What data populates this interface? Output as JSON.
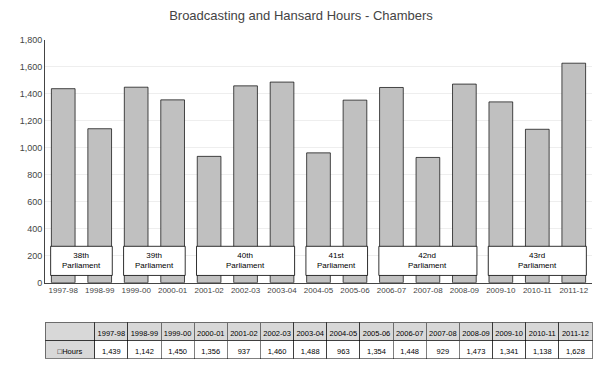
{
  "chart_data": {
    "type": "bar",
    "title": "Broadcasting and Hansard Hours - Chambers",
    "categories": [
      "1997-98",
      "1998-99",
      "1999-00",
      "2000-01",
      "2001-02",
      "2002-03",
      "2003-04",
      "2004-05",
      "2005-06",
      "2006-07",
      "2007-08",
      "2008-09",
      "2009-10",
      "2010-11",
      "2011-12"
    ],
    "values": [
      1439,
      1142,
      1450,
      1356,
      937,
      1460,
      1488,
      963,
      1354,
      1448,
      929,
      1473,
      1341,
      1138,
      1628
    ],
    "value_labels": [
      "1,439",
      "1,142",
      "1,450",
      "1,356",
      "937",
      "1,460",
      "1,488",
      "963",
      "1,354",
      "1,448",
      "929",
      "1,473",
      "1,341",
      "1,138",
      "1,628"
    ],
    "table_row_label": "□Hours",
    "color": "#c0c0c0",
    "ylim": [
      0,
      1800
    ],
    "yticks": [
      0,
      200,
      400,
      600,
      800,
      {
        "value": 1000,
        "label": "1,000"
      },
      {
        "value": 1200,
        "label": "1,200"
      },
      {
        "value": 1400,
        "label": "1,400"
      },
      {
        "value": 1600,
        "label": "1,600"
      },
      {
        "value": 1800,
        "label": "1,800"
      }
    ],
    "grid": true,
    "annotations": [
      {
        "text": "38th\nParliament",
        "from": "1997-98",
        "to": "1998-99"
      },
      {
        "text": "39th\nParliament",
        "from": "1999-00",
        "to": "2000-01"
      },
      {
        "text": "40th\nParliament",
        "from": "2001-02",
        "to": "2003-04"
      },
      {
        "text": "41st\nParliament",
        "from": "2004-05",
        "to": "2005-06"
      },
      {
        "text": "42nd\nParliament",
        "from": "2006-07",
        "to": "2008-09"
      },
      {
        "text": "43rd\nParliament",
        "from": "2009-10",
        "to": "2011-12"
      }
    ]
  }
}
